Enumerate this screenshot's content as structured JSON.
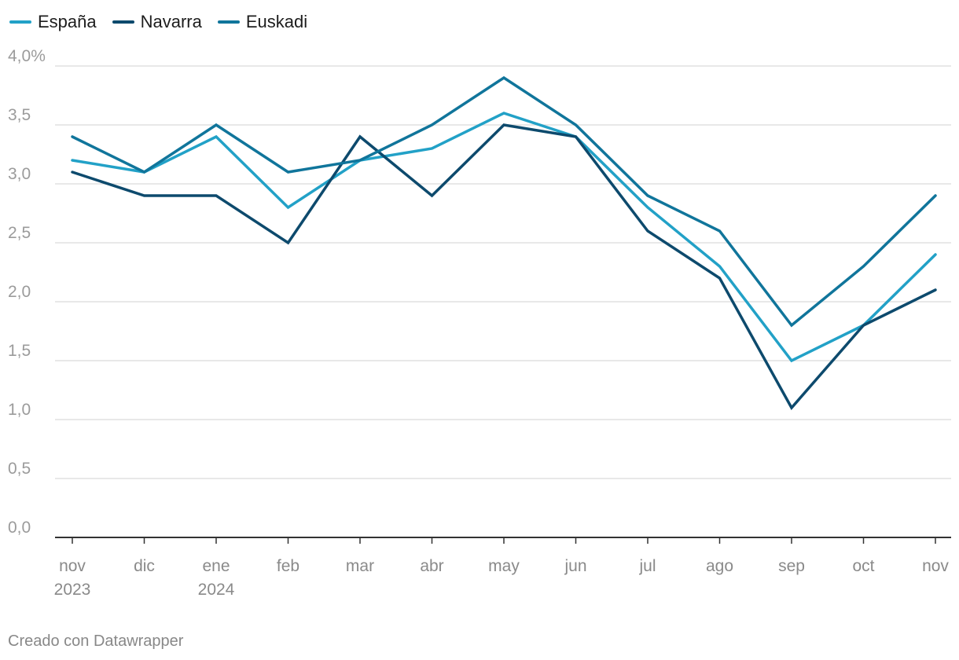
{
  "chart_data": {
    "type": "line",
    "categories": [
      "nov",
      "dic",
      "ene",
      "feb",
      "mar",
      "abr",
      "may",
      "jun",
      "jul",
      "ago",
      "sep",
      "oct",
      "nov"
    ],
    "category_years": [
      "2023",
      "",
      "2024",
      "",
      "",
      "",
      "",
      "",
      "",
      "",
      "",
      "",
      ""
    ],
    "series": [
      {
        "name": "España",
        "color": "#22a1c7",
        "values": [
          3.2,
          3.1,
          3.4,
          2.8,
          3.2,
          3.3,
          3.6,
          3.4,
          2.8,
          2.3,
          1.5,
          1.8,
          2.4
        ]
      },
      {
        "name": "Navarra",
        "color": "#0d4a6d",
        "values": [
          3.1,
          2.9,
          2.9,
          2.5,
          3.4,
          2.9,
          3.5,
          3.4,
          2.6,
          2.2,
          1.1,
          1.8,
          2.1
        ]
      },
      {
        "name": "Euskadi",
        "color": "#10759b",
        "values": [
          3.4,
          3.1,
          3.5,
          3.1,
          3.2,
          3.5,
          3.9,
          3.5,
          2.9,
          2.6,
          1.8,
          2.3,
          2.9
        ]
      }
    ],
    "y_ticks": [
      "0,0",
      "0,5",
      "1,0",
      "1,5",
      "2,0",
      "2,5",
      "3,0",
      "3,5",
      "4,0%"
    ],
    "ylim": [
      0,
      4
    ],
    "grid": true,
    "legend_position": "top-left"
  },
  "footer": "Creado con Datawrapper"
}
